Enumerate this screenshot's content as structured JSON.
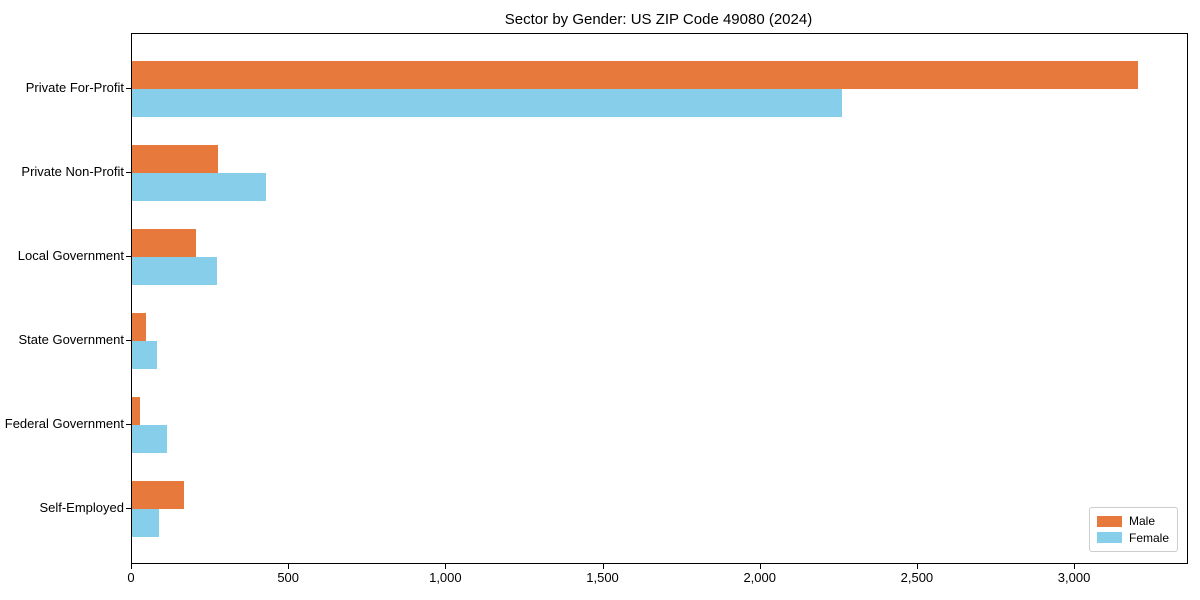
{
  "figure": {
    "background": "#ffffff"
  },
  "chart_data": {
    "type": "bar",
    "orientation": "horizontal",
    "title": "Sector by Gender: US ZIP Code 49080 (2024)",
    "xlabel": "",
    "ylabel": "",
    "categories": [
      "Private For-Profit",
      "Private Non-Profit",
      "Local Government",
      "State Government",
      "Federal Government",
      "Self-Employed"
    ],
    "series": [
      {
        "name": "Male",
        "color": "#e8793d",
        "values": [
          3200,
          275,
          205,
          45,
          25,
          165
        ]
      },
      {
        "name": "Female",
        "color": "#87ceeb",
        "values": [
          2260,
          425,
          270,
          80,
          110,
          85
        ]
      }
    ],
    "xlim": [
      0,
      3356
    ],
    "x_ticks": [
      0,
      500,
      1000,
      1500,
      2000,
      2500,
      3000
    ],
    "x_tick_labels": [
      "0",
      "500",
      "1,000",
      "1,500",
      "2,000",
      "2,500",
      "3,000"
    ],
    "grid": false,
    "legend_position": "lower right",
    "axis_color": "#000000",
    "legend_border_color": "#cccccc"
  }
}
